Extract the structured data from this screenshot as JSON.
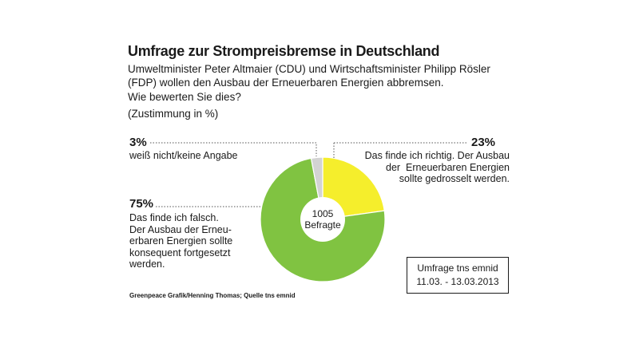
{
  "header": {
    "title": "Umfrage zur Strompreisbremse in Deutschland",
    "subtitle_line1": "Umweltminister Peter Altmaier (CDU) und Wirtschaftsminister Philipp Rösler",
    "subtitle_line2": "(FDP) wollen den Ausbau der Erneuerbaren Energien abbremsen.",
    "question": "Wie bewerten Sie dies?",
    "unit": "(Zustimmung in %)"
  },
  "chart_data": {
    "type": "pie",
    "title": "Umfrage zur Strompreisbremse in Deutschland",
    "center_label": [
      "1005",
      "Befragte"
    ],
    "slices": [
      {
        "label": "Das finde ich richtig. Der Ausbau der Erneuerbaren Energien sollte gedrosselt werden.",
        "value": 23,
        "value_label": "23%",
        "color": "#f5ee2c"
      },
      {
        "label": "Das finde ich falsch. Der Ausbau der Erneuerbaren Energien sollte konsequent fortgesetzt werden.",
        "value": 75,
        "value_label": "75%",
        "color": "#80c341"
      },
      {
        "label": "weiß nicht/keine Angabe",
        "value": 3,
        "value_label": "3%",
        "color": "#d3d3d3"
      }
    ]
  },
  "annotations": {
    "richtig_desc": "Das finde ich richtig. Der Ausbau\nder  Erneuerbaren Energien\nsollte gedrosselt werden.",
    "falsch_desc": "Das finde ich falsch.\nDer Ausbau der Erneu-\nerbaren Energien sollte\nkonsequent fortgesetzt\nwerden.",
    "weiss_desc": "weiß nicht/keine Angabe"
  },
  "source": "Greenpeace Grafik/Henning Thomas; Quelle tns emnid",
  "survey_box": {
    "line1": "Umfrage tns emnid",
    "line2": "11.03. - 13.03.2013"
  },
  "colors": {
    "line": "#555555"
  }
}
